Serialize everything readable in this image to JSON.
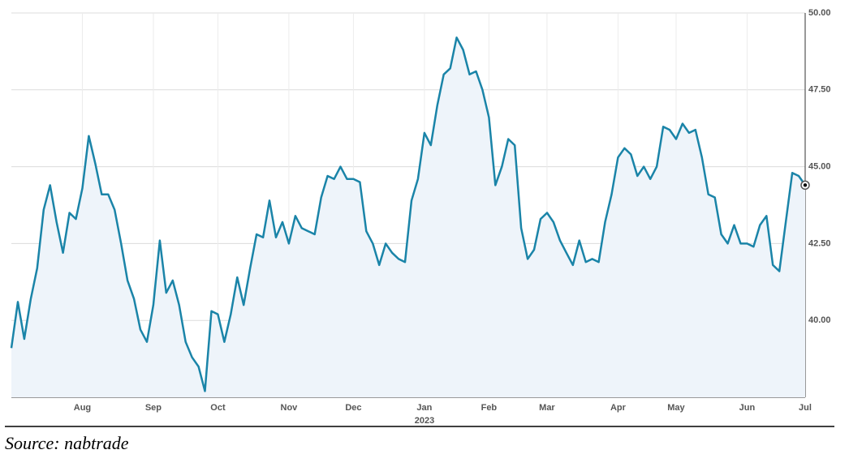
{
  "chart_data": {
    "type": "line",
    "source": "Source: nabtrade",
    "annotations": [
      "2023"
    ],
    "categories": [
      null,
      null,
      null,
      null,
      null,
      null,
      null,
      null,
      null,
      null,
      null,
      "Aug",
      null,
      null,
      null,
      null,
      null,
      null,
      null,
      null,
      null,
      null,
      "Sep",
      null,
      null,
      null,
      null,
      null,
      null,
      null,
      null,
      null,
      "Oct",
      null,
      null,
      null,
      null,
      null,
      null,
      null,
      null,
      null,
      null,
      "Nov",
      null,
      null,
      null,
      null,
      null,
      null,
      null,
      null,
      null,
      "Dec",
      null,
      null,
      null,
      null,
      null,
      null,
      null,
      null,
      null,
      null,
      "Jan",
      null,
      null,
      null,
      null,
      null,
      null,
      null,
      null,
      null,
      "Feb",
      null,
      null,
      null,
      null,
      null,
      null,
      null,
      null,
      "Mar",
      null,
      null,
      null,
      null,
      null,
      null,
      null,
      null,
      null,
      null,
      "Apr",
      null,
      null,
      null,
      null,
      null,
      null,
      null,
      null,
      "May",
      null,
      null,
      null,
      null,
      null,
      null,
      null,
      null,
      null,
      null,
      "Jun",
      null,
      null,
      null,
      null,
      null,
      null,
      null,
      null,
      "Jul"
    ],
    "series": [
      {
        "color": "#1a84a8",
        "fill": "#eef4fa",
        "values": [
          39.1,
          40.6,
          39.4,
          40.7,
          41.7,
          43.6,
          44.4,
          43.2,
          42.2,
          43.5,
          43.3,
          44.3,
          46.0,
          45.1,
          44.1,
          44.1,
          43.6,
          42.5,
          41.3,
          40.7,
          39.7,
          39.3,
          40.5,
          42.6,
          40.9,
          41.3,
          40.5,
          39.3,
          38.8,
          38.5,
          37.7,
          40.3,
          40.2,
          39.3,
          40.2,
          41.4,
          40.5,
          41.7,
          42.8,
          42.7,
          43.9,
          42.7,
          43.2,
          42.5,
          43.4,
          43.0,
          42.9,
          42.8,
          44.0,
          44.7,
          44.6,
          45.0,
          44.6,
          44.6,
          44.5,
          42.9,
          42.5,
          41.8,
          42.5,
          42.2,
          42.0,
          41.9,
          43.9,
          44.6,
          46.1,
          45.7,
          47.0,
          48.0,
          48.2,
          49.2,
          48.8,
          48.0,
          48.1,
          47.5,
          46.6,
          44.4,
          45.0,
          45.9,
          45.7,
          43.0,
          42.0,
          42.3,
          43.3,
          43.5,
          43.2,
          42.6,
          42.2,
          41.8,
          42.6,
          41.9,
          42.0,
          41.9,
          43.2,
          44.1,
          45.3,
          45.6,
          45.4,
          44.7,
          45.0,
          44.6,
          45.0,
          46.3,
          46.2,
          45.9,
          46.4,
          46.1,
          46.2,
          45.3,
          44.1,
          44.0,
          42.8,
          42.5,
          43.1,
          42.5,
          42.5,
          42.4,
          43.1,
          43.4,
          41.8,
          41.6,
          43.2,
          44.8,
          44.7,
          44.4
        ]
      }
    ],
    "ylim": [
      37.5,
      50
    ],
    "yticks": [
      {
        "value": 40,
        "label": "40.00"
      },
      {
        "value": 42.5,
        "label": "42.50"
      },
      {
        "value": 45,
        "label": "45.00"
      },
      {
        "value": 47.5,
        "label": "47.50"
      },
      {
        "value": 50,
        "label": "50.00"
      }
    ],
    "grid": true
  }
}
